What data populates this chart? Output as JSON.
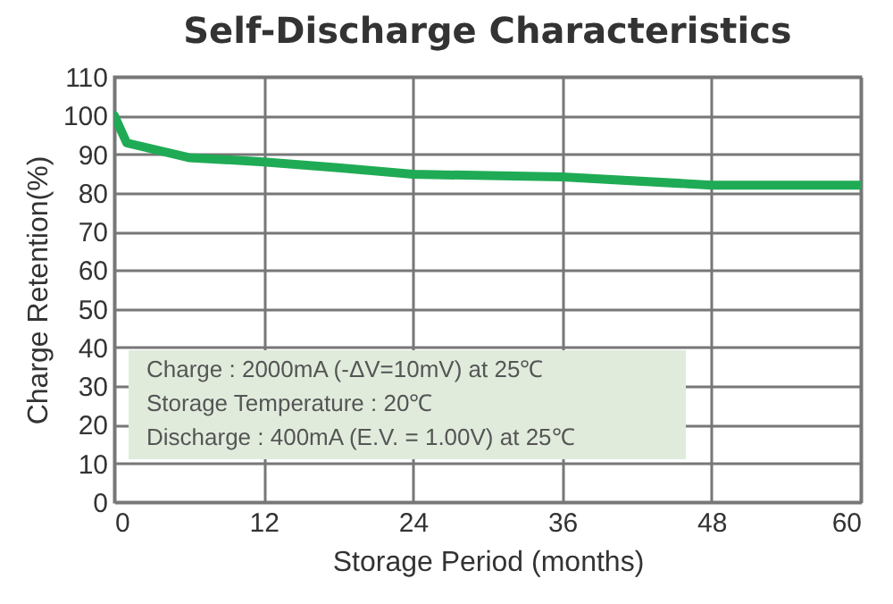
{
  "chart_data": {
    "type": "line",
    "title": "Self-Discharge Characteristics",
    "xlabel": "Storage Period (months)",
    "ylabel": "Charge Retention(%)",
    "x": [
      0,
      1,
      6,
      12,
      18,
      24,
      36,
      48,
      60
    ],
    "series": [
      {
        "color": "#1fab55",
        "values": [
          100,
          92.9,
          89.1,
          88,
          86.5,
          84.8,
          84.1,
          82,
          82
        ]
      }
    ],
    "xlim": [
      0,
      60
    ],
    "xticks": [
      0,
      12,
      24,
      36,
      48,
      60
    ],
    "ylim": [
      0,
      110
    ],
    "yticks": [
      0,
      10,
      20,
      30,
      40,
      50,
      60,
      70,
      80,
      90,
      100,
      110
    ],
    "grid": true,
    "annotations": [
      "Charge : 2000mA (-ΔV=10mV) at 25℃",
      "Storage Temperature : 20℃",
      "Discharge : 400mA (E.V. = 1.00V) at 25℃"
    ]
  }
}
